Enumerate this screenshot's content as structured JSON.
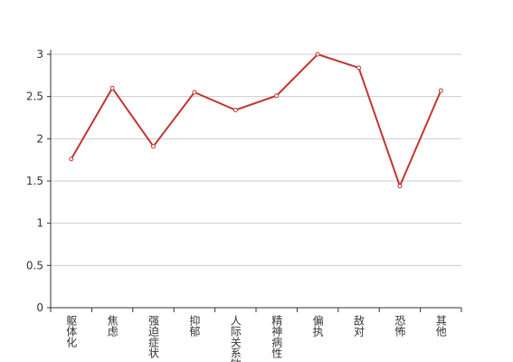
{
  "chart_data": {
    "type": "line",
    "categories": [
      "躯体化",
      "焦虑",
      "强迫症状",
      "抑郁",
      "人际关系敏感",
      "精神病性",
      "偏执",
      "敌对",
      "恐怖",
      "其他"
    ],
    "series": [
      {
        "color": "#c23531",
        "values": [
          1.76,
          2.6,
          1.91,
          2.55,
          2.34,
          2.51,
          3,
          2.84,
          1.44,
          2.57
        ]
      }
    ],
    "ylim": [
      0,
      3
    ],
    "yticks": [
      0,
      0.5,
      1,
      1.5,
      2,
      2.5,
      3
    ],
    "grid": true
  }
}
